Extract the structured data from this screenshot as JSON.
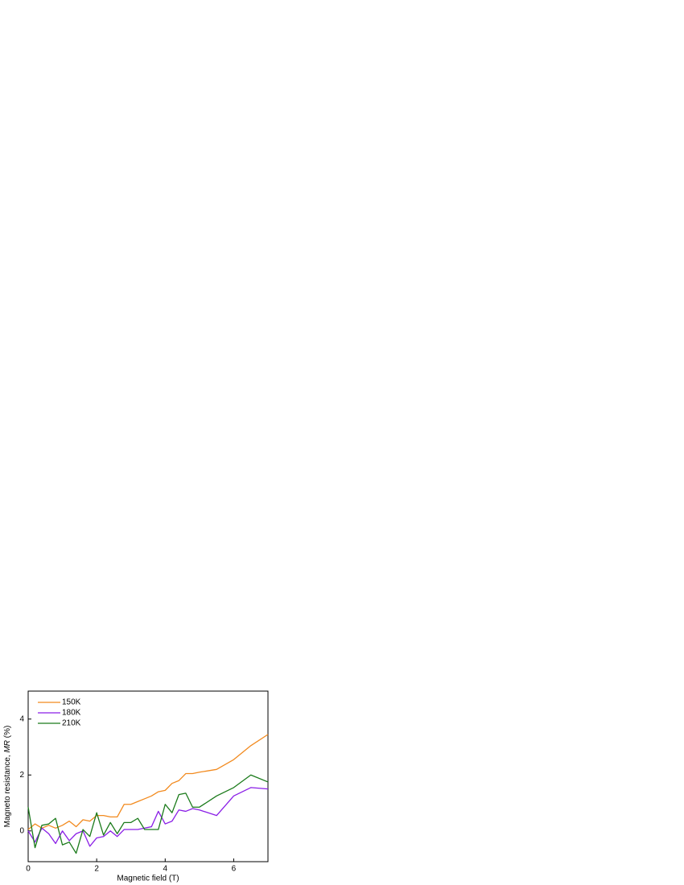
{
  "chart_data": {
    "type": "line",
    "x_label": "Magnetic field (T)",
    "y_label": [
      "Magneto resistance, ",
      "MR",
      " (%)"
    ],
    "x": [
      0,
      0.2,
      0.4,
      0.6,
      0.8,
      1.0,
      1.2,
      1.4,
      1.6,
      1.8,
      2.0,
      2.2,
      2.4,
      2.6,
      2.8,
      3.0,
      3.2,
      3.4,
      3.6,
      3.8,
      4.0,
      4.2,
      4.4,
      4.6,
      4.8,
      5.0,
      5.5,
      6.0,
      6.5,
      7.0
    ],
    "series": [
      {
        "name": "150K",
        "color": "#f28a1e",
        "values": [
          0.05,
          0.25,
          0.1,
          0.2,
          0.1,
          0.2,
          0.35,
          0.15,
          0.4,
          0.35,
          0.55,
          0.55,
          0.5,
          0.5,
          0.95,
          0.95,
          1.05,
          1.15,
          1.25,
          1.4,
          1.45,
          1.7,
          1.8,
          2.05,
          2.05,
          2.1,
          2.2,
          2.55,
          3.05,
          3.45
        ]
      },
      {
        "name": "180K",
        "color": "#8a1ee6",
        "values": [
          0.0,
          -0.4,
          0.1,
          -0.1,
          -0.45,
          0.0,
          -0.35,
          -0.1,
          0.0,
          -0.55,
          -0.25,
          -0.2,
          0.0,
          -0.2,
          0.05,
          0.05,
          0.05,
          0.1,
          0.15,
          0.7,
          0.25,
          0.35,
          0.75,
          0.7,
          0.8,
          0.75,
          0.55,
          1.25,
          1.55,
          1.5
        ]
      },
      {
        "name": "210K",
        "color": "#1a7a1a",
        "values": [
          0.85,
          -0.6,
          0.2,
          0.25,
          0.45,
          -0.5,
          -0.4,
          -0.8,
          0.05,
          -0.2,
          0.65,
          -0.15,
          0.3,
          -0.1,
          0.3,
          0.3,
          0.45,
          0.05,
          0.05,
          0.05,
          0.95,
          0.65,
          1.3,
          1.35,
          0.85,
          0.85,
          1.25,
          1.55,
          2.0,
          1.75
        ]
      }
    ],
    "xlim": [
      0,
      7
    ],
    "xticks": [
      0,
      2,
      4,
      6
    ],
    "ylim": [
      -1.1,
      5
    ],
    "yticks": [
      0,
      2,
      4
    ],
    "legend": "upper-left"
  }
}
